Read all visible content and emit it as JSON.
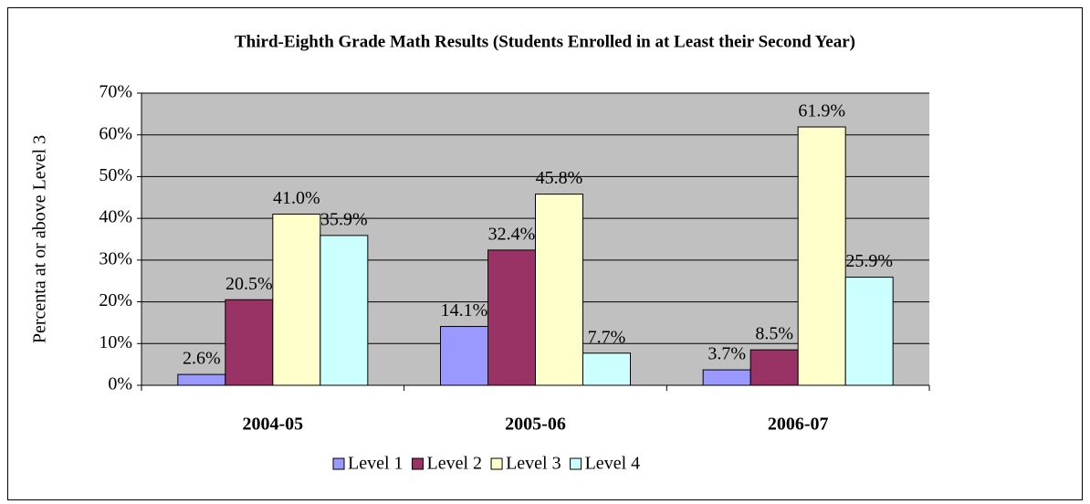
{
  "chart_data": {
    "type": "bar",
    "title": "Third-Eighth Grade Math Results (Students Enrolled in at Least their Second Year)",
    "y_label": "Percenta at or above Level 3",
    "categories": [
      "2004-05",
      "2005-06",
      "2006-07"
    ],
    "series": [
      {
        "name": "Level 1",
        "color": "#9999ff",
        "values": [
          2.6,
          14.1,
          3.7
        ],
        "value_labels": [
          "2.6%",
          "14.1%",
          "3.7%"
        ]
      },
      {
        "name": "Level 2",
        "color": "#993366",
        "values": [
          20.5,
          32.4,
          8.5
        ],
        "value_labels": [
          "20.5%",
          "32.4%",
          "8.5%"
        ]
      },
      {
        "name": "Level 3",
        "color": "#ffffcc",
        "values": [
          41.0,
          45.8,
          61.9
        ],
        "value_labels": [
          "41.0%",
          "45.8%",
          "61.9%"
        ]
      },
      {
        "name": "Level 4",
        "color": "#ccffff",
        "values": [
          35.9,
          7.7,
          25.9
        ],
        "value_labels": [
          "35.9%",
          "7.7%",
          "25.9%"
        ]
      }
    ],
    "ylim": [
      0,
      70
    ],
    "yticks": [
      {
        "value": 0,
        "label": "0%"
      },
      {
        "value": 10,
        "label": "10%"
      },
      {
        "value": 20,
        "label": "20%"
      },
      {
        "value": 30,
        "label": "30%"
      },
      {
        "value": 40,
        "label": "40%"
      },
      {
        "value": 50,
        "label": "50%"
      },
      {
        "value": 60,
        "label": "60%"
      },
      {
        "value": 70,
        "label": "70%"
      }
    ],
    "grid": true,
    "legend": "bottom"
  }
}
